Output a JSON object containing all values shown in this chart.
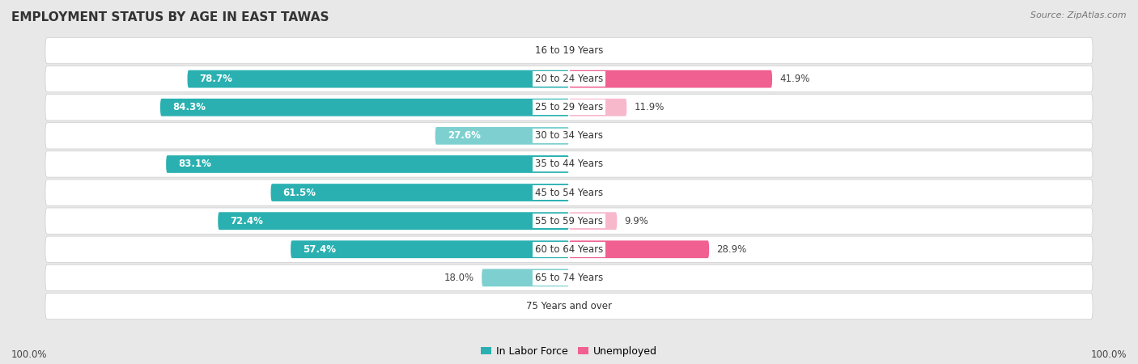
{
  "title": "EMPLOYMENT STATUS BY AGE IN EAST TAWAS",
  "source": "Source: ZipAtlas.com",
  "categories": [
    "16 to 19 Years",
    "20 to 24 Years",
    "25 to 29 Years",
    "30 to 34 Years",
    "35 to 44 Years",
    "45 to 54 Years",
    "55 to 59 Years",
    "60 to 64 Years",
    "65 to 74 Years",
    "75 Years and over"
  ],
  "in_labor_force": [
    0.0,
    78.7,
    84.3,
    27.6,
    83.1,
    61.5,
    72.4,
    57.4,
    18.0,
    0.0
  ],
  "unemployed": [
    0.0,
    41.9,
    11.9,
    0.0,
    0.0,
    0.0,
    9.9,
    28.9,
    0.0,
    0.0
  ],
  "labor_color_dark": "#2ab0b0",
  "labor_color_light": "#7ed0d0",
  "unemployed_color_dark": "#f06090",
  "unemployed_color_light": "#f8b8cc",
  "bg_color": "#e8e8e8",
  "row_bg_color": "#ffffff",
  "title_fontsize": 11,
  "label_fontsize": 8.5,
  "source_fontsize": 8,
  "legend_fontsize": 9,
  "max_val": 100.0,
  "scale": 100.0
}
